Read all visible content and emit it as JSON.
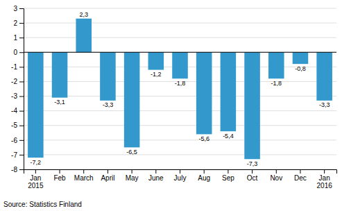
{
  "chart_data": {
    "type": "bar",
    "categories": [
      "Jan\n2015",
      "Feb",
      "March",
      "April",
      "May",
      "June",
      "July",
      "Aug",
      "Sep",
      "Oct",
      "Nov",
      "Dec",
      "Jan\n2016"
    ],
    "values": [
      -7.2,
      -3.1,
      2.3,
      -3.3,
      -6.5,
      -1.2,
      -1.8,
      -5.6,
      -5.4,
      -7.3,
      -1.8,
      -0.8,
      -3.3
    ],
    "value_labels": [
      "-7,2",
      "-3,1",
      "2,3",
      "-3,3",
      "-6,5",
      "-1,2",
      "-1,8",
      "-5,6",
      "-5,4",
      "-7,3",
      "-1,8",
      "-0,8",
      "-3,3"
    ],
    "data_labels": true,
    "color": "#3399CC",
    "ylim": [
      -8,
      3
    ],
    "yticks": [
      -8,
      -7,
      -6,
      -5,
      -4,
      -3,
      -2,
      -1,
      0,
      1,
      2,
      3
    ],
    "grid": true,
    "annotations": [
      "Source: Statistics Finland"
    ]
  }
}
